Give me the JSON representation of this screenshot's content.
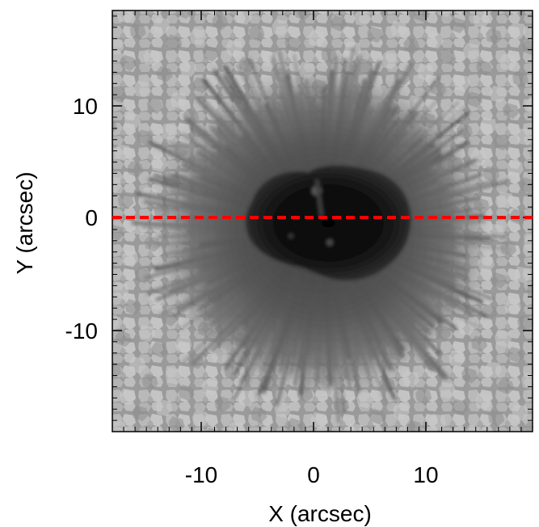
{
  "figure": {
    "xlabel": "X (arcsec)",
    "ylabel": "Y (arcsec)",
    "x_ticks": [
      "-10",
      "0",
      "10"
    ],
    "y_ticks": [
      "10",
      "0",
      "-10"
    ],
    "x_tick_values": [
      -10,
      0,
      10
    ],
    "y_tick_values": [
      10,
      0,
      -10
    ],
    "xlim": [
      -18,
      19
    ],
    "ylim": [
      -19,
      18.5
    ],
    "image_description_colormap": "grayscale",
    "cut_line": {
      "y": 0,
      "style": "dashed",
      "color": "#ff0000"
    }
  }
}
